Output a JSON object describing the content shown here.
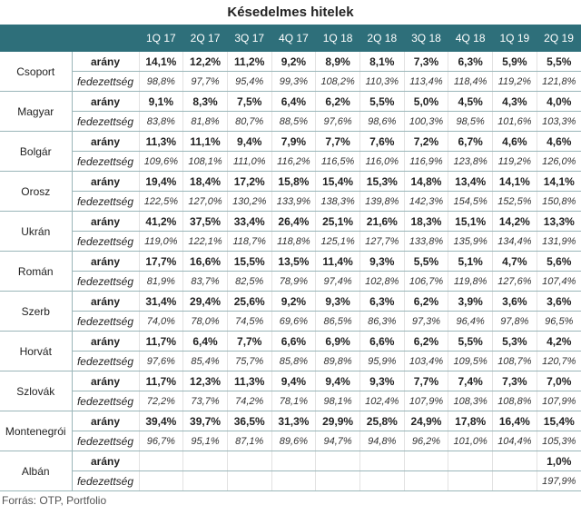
{
  "title": "Késedelmes hitelek",
  "source": "Forrás: OTP, Portfolio",
  "columns": [
    "1Q 17",
    "2Q 17",
    "3Q 17",
    "4Q 17",
    "1Q 18",
    "2Q 18",
    "3Q 18",
    "4Q 18",
    "1Q 19",
    "2Q 19"
  ],
  "row_labels": {
    "ratio": "arány",
    "coverage": "fedezettség"
  },
  "rows": [
    {
      "country": "Csoport",
      "ratio": [
        "14,1%",
        "12,2%",
        "11,2%",
        "9,2%",
        "8,9%",
        "8,1%",
        "7,3%",
        "6,3%",
        "5,9%",
        "5,5%"
      ],
      "coverage": [
        "98,8%",
        "97,7%",
        "95,4%",
        "99,3%",
        "108,2%",
        "110,3%",
        "113,4%",
        "118,4%",
        "119,2%",
        "121,8%"
      ]
    },
    {
      "country": "Magyar",
      "ratio": [
        "9,1%",
        "8,3%",
        "7,5%",
        "6,4%",
        "6,2%",
        "5,5%",
        "5,0%",
        "4,5%",
        "4,3%",
        "4,0%"
      ],
      "coverage": [
        "83,8%",
        "81,8%",
        "80,7%",
        "88,5%",
        "97,6%",
        "98,6%",
        "100,3%",
        "98,5%",
        "101,6%",
        "103,3%"
      ]
    },
    {
      "country": "Bolgár",
      "ratio": [
        "11,3%",
        "11,1%",
        "9,4%",
        "7,9%",
        "7,7%",
        "7,6%",
        "7,2%",
        "6,7%",
        "4,6%",
        "4,6%"
      ],
      "coverage": [
        "109,6%",
        "108,1%",
        "111,0%",
        "116,2%",
        "116,5%",
        "116,0%",
        "116,9%",
        "123,8%",
        "119,2%",
        "126,0%"
      ]
    },
    {
      "country": "Orosz",
      "ratio": [
        "19,4%",
        "18,4%",
        "17,2%",
        "15,8%",
        "15,4%",
        "15,3%",
        "14,8%",
        "13,4%",
        "14,1%",
        "14,1%"
      ],
      "coverage": [
        "122,5%",
        "127,0%",
        "130,2%",
        "133,9%",
        "138,3%",
        "139,8%",
        "142,3%",
        "154,5%",
        "152,5%",
        "150,8%"
      ]
    },
    {
      "country": "Ukrán",
      "ratio": [
        "41,2%",
        "37,5%",
        "33,4%",
        "26,4%",
        "25,1%",
        "21,6%",
        "18,3%",
        "15,1%",
        "14,2%",
        "13,3%"
      ],
      "coverage": [
        "119,0%",
        "122,1%",
        "118,7%",
        "118,8%",
        "125,1%",
        "127,7%",
        "133,8%",
        "135,9%",
        "134,4%",
        "131,9%"
      ]
    },
    {
      "country": "Román",
      "ratio": [
        "17,7%",
        "16,6%",
        "15,5%",
        "13,5%",
        "11,4%",
        "9,3%",
        "5,5%",
        "5,1%",
        "4,7%",
        "5,6%"
      ],
      "coverage": [
        "81,9%",
        "83,7%",
        "82,5%",
        "78,9%",
        "97,4%",
        "102,8%",
        "106,7%",
        "119,8%",
        "127,6%",
        "107,4%"
      ]
    },
    {
      "country": "Szerb",
      "ratio": [
        "31,4%",
        "29,4%",
        "25,6%",
        "9,2%",
        "9,3%",
        "6,3%",
        "6,2%",
        "3,9%",
        "3,6%",
        "3,6%"
      ],
      "coverage": [
        "74,0%",
        "78,0%",
        "74,5%",
        "69,6%",
        "86,5%",
        "86,3%",
        "97,3%",
        "96,4%",
        "97,8%",
        "96,5%"
      ]
    },
    {
      "country": "Horvát",
      "ratio": [
        "11,7%",
        "6,4%",
        "7,7%",
        "6,6%",
        "6,9%",
        "6,6%",
        "6,2%",
        "5,5%",
        "5,3%",
        "4,2%"
      ],
      "coverage": [
        "97,6%",
        "85,4%",
        "75,7%",
        "85,8%",
        "89,8%",
        "95,9%",
        "103,4%",
        "109,5%",
        "108,7%",
        "120,7%"
      ]
    },
    {
      "country": "Szlovák",
      "ratio": [
        "11,7%",
        "12,3%",
        "11,3%",
        "9,4%",
        "9,4%",
        "9,3%",
        "7,7%",
        "7,4%",
        "7,3%",
        "7,0%"
      ],
      "coverage": [
        "72,2%",
        "73,7%",
        "74,2%",
        "78,1%",
        "98,1%",
        "102,4%",
        "107,9%",
        "108,3%",
        "108,8%",
        "107,9%"
      ]
    },
    {
      "country": "Montenegrói",
      "ratio": [
        "39,4%",
        "39,7%",
        "36,5%",
        "31,3%",
        "29,9%",
        "25,8%",
        "24,9%",
        "17,8%",
        "16,4%",
        "15,4%"
      ],
      "coverage": [
        "96,7%",
        "95,1%",
        "87,1%",
        "89,6%",
        "94,7%",
        "94,8%",
        "96,2%",
        "101,0%",
        "104,4%",
        "105,3%"
      ]
    },
    {
      "country": "Albán",
      "ratio": [
        "",
        "",
        "",
        "",
        "",
        "",
        "",
        "",
        "",
        "1,0%"
      ],
      "coverage": [
        "",
        "",
        "",
        "",
        "",
        "",
        "",
        "",
        "",
        "197,9%"
      ]
    }
  ]
}
